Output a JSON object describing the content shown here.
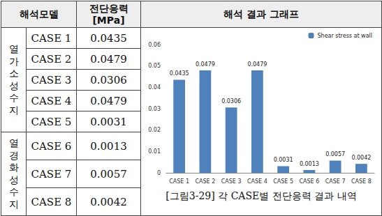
{
  "table": {
    "header": {
      "model": "해석모델",
      "stress": [
        "전단응력",
        "[MPa]"
      ],
      "graph": "해석 결과 그래프"
    },
    "groups": [
      {
        "label": "열가소성수지",
        "rows": [
          {
            "case": "CASE 1",
            "stress": "0.0435"
          },
          {
            "case": "CASE 2",
            "stress": "0.0479"
          },
          {
            "case": "CASE 3",
            "stress": "0.0306"
          },
          {
            "case": "CASE 4",
            "stress": "0.0479"
          },
          {
            "case": "CASE 5",
            "stress": "0.0031"
          }
        ]
      },
      {
        "label": "열경화성수지",
        "rows": [
          {
            "case": "CASE 6",
            "stress": "0.0013"
          },
          {
            "case": "CASE 7",
            "stress": "0.0057"
          },
          {
            "case": "CASE 8",
            "stress": "0.0042"
          }
        ]
      }
    ],
    "caption": "[그림3-29] 각 CASE별 전단응력 결과 내역"
  },
  "chart_data": {
    "type": "bar",
    "categories": [
      "CASE 1",
      "CASE 2",
      "CASE 3",
      "CASE 4",
      "CASE 5",
      "CASE 6",
      "CASE 7",
      "CASE 8"
    ],
    "series": [
      {
        "name": "Shear stress at wall",
        "color": "#4f81bd",
        "values": [
          0.0435,
          0.0479,
          0.0306,
          0.0479,
          0.0031,
          0.0013,
          0.0057,
          0.0042
        ]
      }
    ],
    "ylim": [
      0,
      0.06
    ],
    "yticks": [
      0,
      0.01,
      0.02,
      0.03,
      0.04,
      0.05,
      0.06
    ],
    "grid": false,
    "legend": "upper right",
    "data_labels": true
  }
}
